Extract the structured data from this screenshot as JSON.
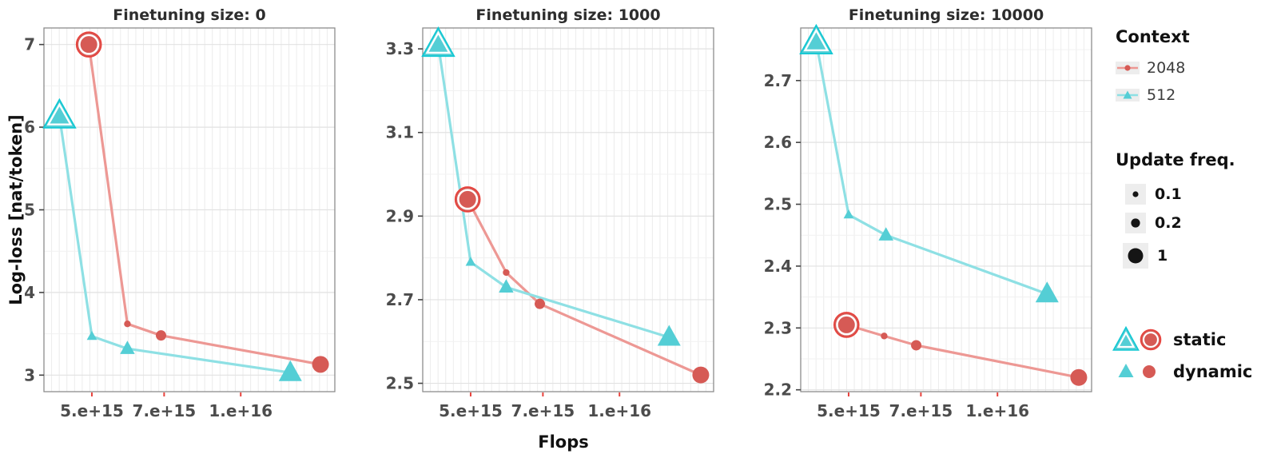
{
  "figure": {
    "ylabel": "Log-loss [nat/token]",
    "xlabel": "Flops"
  },
  "colors": {
    "red_marker": "#d65a55",
    "red_line": "#ed9894",
    "red_ring": "#e8423c",
    "cyan_marker": "#54ced5",
    "cyan_line": "#8ee0e4",
    "cyan_ring": "#12c8d3",
    "grid_vertical": "#ececec",
    "grid_minor": "#f1f1f1",
    "grid_major": "#e2e2e2",
    "panel_border": "#8d8d8d",
    "tick_text": "#4c4c4c",
    "x_tick_mark": "#e8423c",
    "y_tick_mark": "#444444"
  },
  "legend": {
    "context": {
      "title": "Context",
      "items": [
        {
          "label": "2048",
          "marker": "circle",
          "marker_color": "#d65a55",
          "line_color": "#ed9894"
        },
        {
          "label": "512",
          "marker": "triangle",
          "marker_color": "#54ced5",
          "line_color": "#8ee0e4"
        }
      ]
    },
    "update_freq": {
      "title": "Update freq.",
      "items": [
        {
          "label": "0.1",
          "r": 3.6
        },
        {
          "label": "0.2",
          "r": 5.6
        },
        {
          "label": "1",
          "r": 9.5
        }
      ]
    },
    "mode": {
      "items": [
        {
          "label": "static"
        },
        {
          "label": "dynamic"
        }
      ]
    }
  },
  "chart_data": [
    {
      "type": "line",
      "title": "Finetuning size: 0",
      "xscale": "log",
      "xlim": [
        4000000000000000.0,
        1.55e+16
      ],
      "ylim": [
        2.8,
        7.2
      ],
      "x_ticks": [
        5000000000000000.0,
        7000000000000000.0,
        1e+16
      ],
      "x_tick_labels": [
        "5.e+15",
        "7.e+15",
        "1.e+16"
      ],
      "y_ticks": [
        3,
        4,
        5,
        6,
        7
      ],
      "y_tick_labels": [
        "3",
        "4",
        "5",
        "6",
        "7"
      ],
      "series": [
        {
          "name": "2048",
          "marker": "circle",
          "color": "#d65a55",
          "line_color": "#ed9894",
          "ring_color": "#e8423c",
          "points": [
            {
              "x": 4930000000000000.0,
              "y": 7.0,
              "update_freq": 1,
              "mode": "static"
            },
            {
              "x": 5900000000000000.0,
              "y": 3.62,
              "update_freq": 0.1,
              "mode": "dynamic"
            },
            {
              "x": 6900000000000000.0,
              "y": 3.48,
              "update_freq": 0.2,
              "mode": "dynamic"
            },
            {
              "x": 1.45e+16,
              "y": 3.13,
              "update_freq": 1,
              "mode": "dynamic"
            }
          ]
        },
        {
          "name": "512",
          "marker": "triangle",
          "color": "#54ced5",
          "line_color": "#8ee0e4",
          "ring_color": "#12c8d3",
          "points": [
            {
              "x": 4300000000000000.0,
              "y": 6.13,
              "update_freq": 1,
              "mode": "static"
            },
            {
              "x": 5000000000000000.0,
              "y": 3.47,
              "update_freq": 0.1,
              "mode": "dynamic"
            },
            {
              "x": 5900000000000000.0,
              "y": 3.32,
              "update_freq": 0.2,
              "mode": "dynamic"
            },
            {
              "x": 1.26e+16,
              "y": 3.03,
              "update_freq": 1,
              "mode": "dynamic"
            }
          ]
        }
      ]
    },
    {
      "type": "line",
      "title": "Finetuning size: 1000",
      "xscale": "log",
      "xlim": [
        4000000000000000.0,
        1.55e+16
      ],
      "ylim": [
        2.48,
        3.35
      ],
      "x_ticks": [
        5000000000000000.0,
        7000000000000000.0,
        1e+16
      ],
      "x_tick_labels": [
        "5.e+15",
        "7.e+15",
        "1.e+16"
      ],
      "y_ticks": [
        2.5,
        2.7,
        2.9,
        3.1,
        3.3
      ],
      "y_tick_labels": [
        "2.5",
        "2.7",
        "2.9",
        "3.1",
        "3.3"
      ],
      "series": [
        {
          "name": "2048",
          "marker": "circle",
          "color": "#d65a55",
          "line_color": "#ed9894",
          "ring_color": "#e8423c",
          "points": [
            {
              "x": 4930000000000000.0,
              "y": 2.94,
              "update_freq": 1,
              "mode": "static"
            },
            {
              "x": 5900000000000000.0,
              "y": 2.765,
              "update_freq": 0.1,
              "mode": "dynamic"
            },
            {
              "x": 6900000000000000.0,
              "y": 2.69,
              "update_freq": 0.2,
              "mode": "dynamic"
            },
            {
              "x": 1.46e+16,
              "y": 2.52,
              "update_freq": 1,
              "mode": "dynamic"
            }
          ]
        },
        {
          "name": "512",
          "marker": "triangle",
          "color": "#54ced5",
          "line_color": "#8ee0e4",
          "ring_color": "#12c8d3",
          "points": [
            {
              "x": 4300000000000000.0,
              "y": 3.31,
              "update_freq": 1,
              "mode": "static"
            },
            {
              "x": 5000000000000000.0,
              "y": 2.79,
              "update_freq": 0.1,
              "mode": "dynamic"
            },
            {
              "x": 5900000000000000.0,
              "y": 2.73,
              "update_freq": 0.2,
              "mode": "dynamic"
            },
            {
              "x": 1.26e+16,
              "y": 2.61,
              "update_freq": 1,
              "mode": "dynamic"
            }
          ]
        }
      ]
    },
    {
      "type": "line",
      "title": "Finetuning size: 10000",
      "xscale": "log",
      "xlim": [
        4000000000000000.0,
        1.55e+16
      ],
      "ylim": [
        2.197,
        2.785
      ],
      "x_ticks": [
        5000000000000000.0,
        7000000000000000.0,
        1e+16
      ],
      "x_tick_labels": [
        "5.e+15",
        "7.e+15",
        "1.e+16"
      ],
      "y_ticks": [
        2.2,
        2.3,
        2.4,
        2.5,
        2.6,
        2.7
      ],
      "y_tick_labels": [
        "2.2",
        "2.3",
        "2.4",
        "2.5",
        "2.6",
        "2.7"
      ],
      "series": [
        {
          "name": "2048",
          "marker": "circle",
          "color": "#d65a55",
          "line_color": "#ed9894",
          "ring_color": "#e8423c",
          "points": [
            {
              "x": 4950000000000000.0,
              "y": 2.305,
              "update_freq": 1,
              "mode": "static"
            },
            {
              "x": 5900000000000000.0,
              "y": 2.287,
              "update_freq": 0.1,
              "mode": "dynamic"
            },
            {
              "x": 6850000000000000.0,
              "y": 2.272,
              "update_freq": 0.2,
              "mode": "dynamic"
            },
            {
              "x": 1.46e+16,
              "y": 2.22,
              "update_freq": 1,
              "mode": "dynamic"
            }
          ]
        },
        {
          "name": "512",
          "marker": "triangle",
          "color": "#54ced5",
          "line_color": "#8ee0e4",
          "ring_color": "#12c8d3",
          "points": [
            {
              "x": 4300000000000000.0,
              "y": 2.762,
              "update_freq": 1,
              "mode": "static"
            },
            {
              "x": 5000000000000000.0,
              "y": 2.483,
              "update_freq": 0.1,
              "mode": "dynamic"
            },
            {
              "x": 5950000000000000.0,
              "y": 2.45,
              "update_freq": 0.2,
              "mode": "dynamic"
            },
            {
              "x": 1.26e+16,
              "y": 2.355,
              "update_freq": 1,
              "mode": "dynamic"
            }
          ]
        }
      ]
    }
  ]
}
